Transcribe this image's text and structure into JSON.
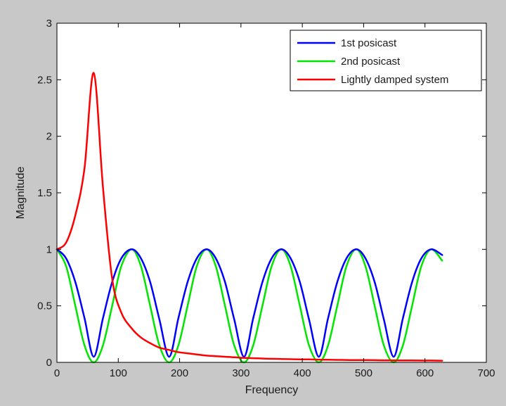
{
  "chart_data": {
    "type": "line",
    "title": "",
    "xlabel": "Frequency",
    "ylabel": "Magnitude",
    "xlim": [
      0,
      700
    ],
    "ylim": [
      0,
      3
    ],
    "xticks": [
      0,
      100,
      200,
      300,
      400,
      500,
      600,
      700
    ],
    "yticks": [
      0,
      0.5,
      1,
      1.5,
      2,
      2.5,
      3
    ],
    "xtick_labels": [
      "0",
      "100",
      "200",
      "300",
      "400",
      "500",
      "600",
      "700"
    ],
    "ytick_labels": [
      "0",
      "0.5",
      "1",
      "1.5",
      "2",
      "2.5",
      "3"
    ],
    "grid": false,
    "legend_position": "top-right",
    "x": [
      0,
      15,
      30,
      45,
      60,
      75,
      90,
      105,
      122,
      137,
      152,
      167,
      183,
      198,
      213,
      228,
      244,
      259,
      274,
      289,
      305,
      320,
      335,
      350,
      366,
      381,
      396,
      411,
      427,
      442,
      457,
      472,
      488,
      503,
      518,
      533,
      549,
      564,
      579,
      594,
      610,
      628
    ],
    "series": [
      {
        "name": "1st posicast",
        "color": "#0000ff",
        "values": [
          1.0,
          0.92,
          0.71,
          0.39,
          0.05,
          0.39,
          0.71,
          0.92,
          1.0,
          0.92,
          0.71,
          0.38,
          0.05,
          0.39,
          0.71,
          0.92,
          1.0,
          0.92,
          0.71,
          0.38,
          0.05,
          0.39,
          0.71,
          0.92,
          1.0,
          0.92,
          0.71,
          0.38,
          0.05,
          0.39,
          0.71,
          0.92,
          1.0,
          0.92,
          0.71,
          0.38,
          0.05,
          0.39,
          0.71,
          0.92,
          1.0,
          0.95
        ]
      },
      {
        "name": "2nd posicast",
        "color": "#00e600",
        "values": [
          1.0,
          0.85,
          0.5,
          0.15,
          0.0,
          0.15,
          0.5,
          0.85,
          1.0,
          0.85,
          0.5,
          0.15,
          0.0,
          0.15,
          0.5,
          0.85,
          1.0,
          0.85,
          0.5,
          0.15,
          0.0,
          0.15,
          0.5,
          0.85,
          1.0,
          0.85,
          0.5,
          0.15,
          0.0,
          0.15,
          0.5,
          0.85,
          1.0,
          0.85,
          0.5,
          0.15,
          0.0,
          0.15,
          0.5,
          0.85,
          1.0,
          0.9
        ]
      },
      {
        "name": "Lightly damped system",
        "color": "#ff0000",
        "values": [
          1.0,
          1.06,
          1.3,
          1.72,
          2.56,
          1.55,
          0.74,
          0.44,
          0.3,
          0.22,
          0.17,
          0.13,
          0.11,
          0.09,
          0.08,
          0.07,
          0.06,
          0.055,
          0.05,
          0.045,
          0.04,
          0.037,
          0.034,
          0.032,
          0.03,
          0.028,
          0.027,
          0.026,
          0.024,
          0.023,
          0.022,
          0.021,
          0.02,
          0.02,
          0.019,
          0.018,
          0.018,
          0.017,
          0.017,
          0.016,
          0.016,
          0.015
        ]
      }
    ]
  }
}
